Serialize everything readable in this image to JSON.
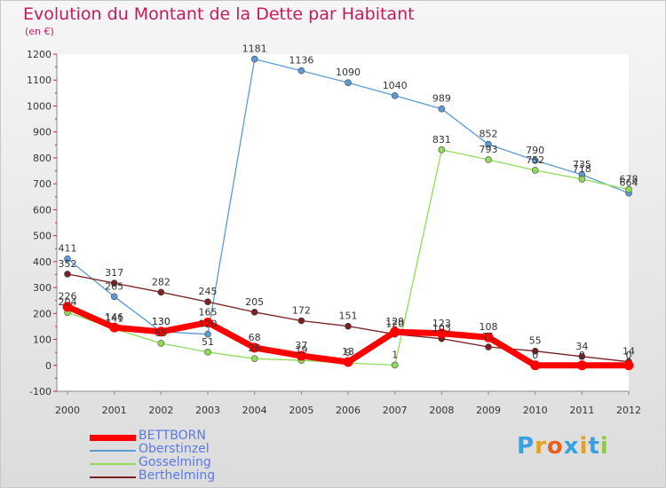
{
  "title": "Evolution du Montant de la Dette par Habitant",
  "subtitle": "(en €)",
  "logo": "Proxiti",
  "chart_data": {
    "type": "line",
    "x": [
      "2000",
      "2001",
      "2002",
      "2003",
      "2004",
      "2005",
      "2006",
      "2007",
      "2008",
      "2009",
      "2010",
      "2011",
      "2012"
    ],
    "ylim": [
      -100,
      1200
    ],
    "yticks": [
      -100,
      0,
      100,
      200,
      300,
      400,
      500,
      600,
      700,
      800,
      900,
      1000,
      1100,
      1200
    ],
    "grid": false,
    "legend_position": "bottom-left",
    "series": [
      {
        "name": "BETTBORN",
        "color": "#ff0000",
        "values": [
          226,
          146,
          130,
          165,
          68,
          37,
          13,
          129,
          123,
          108,
          0,
          0,
          0
        ]
      },
      {
        "name": "Oberstinzel",
        "color": "#5b9bd5",
        "values": [
          411,
          265,
          130,
          120,
          1181,
          1136,
          1090,
          1040,
          989,
          852,
          790,
          735,
          664
        ]
      },
      {
        "name": "Gosselming",
        "color": "#8fdc5a",
        "values": [
          204,
          141,
          85,
          51,
          26,
          19,
          9,
          1,
          831,
          793,
          752,
          718,
          678
        ]
      },
      {
        "name": "Berthelming",
        "color": "#7a2020",
        "values": [
          352,
          317,
          282,
          245,
          205,
          172,
          151,
          120,
          103,
          71,
          55,
          34,
          14
        ]
      }
    ]
  }
}
